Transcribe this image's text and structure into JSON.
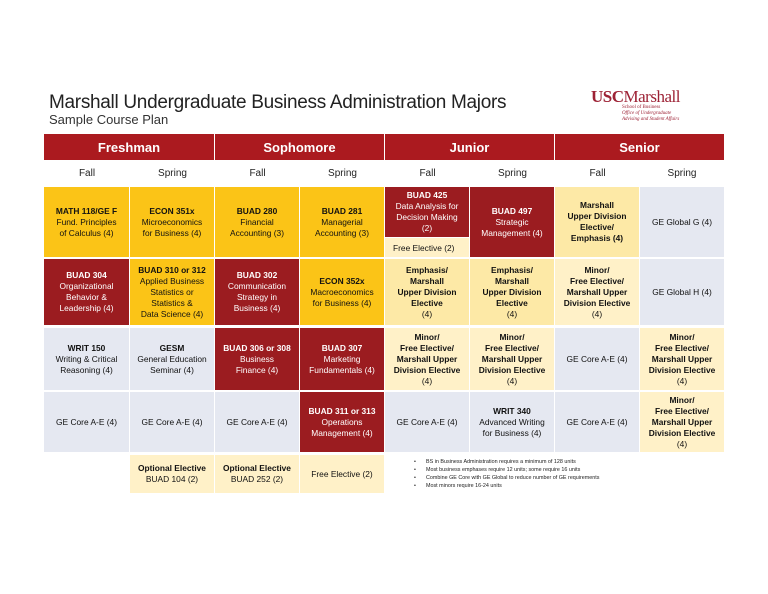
{
  "header": {
    "title": "Marshall Undergraduate Business Administration Majors",
    "subtitle": "Sample Course Plan"
  },
  "logo": {
    "usc": "USC",
    "marshall": "Marshall",
    "line1": "School of Business",
    "line2": "Office of Undergraduate",
    "line3": "Advising and Student Affairs"
  },
  "years": [
    "Freshman",
    "Sophomore",
    "Junior",
    "Senior"
  ],
  "terms": [
    "Fall",
    "Spring",
    "Fall",
    "Spring",
    "Fall",
    "Spring",
    "Fall",
    "Spring"
  ],
  "row1": {
    "c1": {
      "bold": "MATH 118/GE F",
      "text": [
        "Fund. Principles",
        "of Calculus (4)"
      ]
    },
    "c2": {
      "bold": "ECON 351x",
      "text": [
        "Microeconomics",
        "for Business (4)"
      ]
    },
    "c3": {
      "bold": "BUAD 280",
      "text": [
        "Financial",
        "Accounting  (3)"
      ]
    },
    "c4": {
      "bold": "BUAD 281",
      "text": [
        "Managerial",
        "Accounting (3)"
      ]
    },
    "c5": {
      "bold": "BUAD 425",
      "text": [
        "Data Analysis for",
        "Decision Making",
        "(2)"
      ]
    },
    "c5_free": "Free Elective (2)",
    "c6": {
      "bold": "BUAD 497",
      "text": [
        "Strategic",
        "Management (4)"
      ]
    },
    "c7": {
      "bold": [
        "Marshall",
        "Upper Division",
        "Elective/",
        "Emphasis (4)"
      ]
    },
    "c8": {
      "text": "GE Global G (4)"
    }
  },
  "row2": {
    "c1": {
      "bold": "BUAD 304",
      "text": [
        "Organizational",
        "Behavior &",
        "Leadership (4)"
      ]
    },
    "c2": {
      "bold": "BUAD 310 or 312",
      "text": [
        "Applied Business",
        "Statistics or",
        "Statistics &",
        "Data Science (4)"
      ]
    },
    "c3": {
      "bold": "BUAD 302",
      "text": [
        "Communication",
        "Strategy in",
        "Business (4)"
      ]
    },
    "c4": {
      "bold": "ECON 352x",
      "text": [
        "Macroeconomics",
        "for Business (4)"
      ]
    },
    "c5": {
      "bold": [
        "Emphasis/",
        "Marshall",
        "Upper Division",
        "Elective"
      ],
      "text": [
        "(4)"
      ]
    },
    "c6": {
      "bold": [
        "Emphasis/",
        "Marshall",
        "Upper Division",
        "Elective"
      ],
      "text": [
        "(4)"
      ]
    },
    "c7": {
      "bold": [
        "Minor/",
        "Free Elective/",
        "Marshall Upper",
        "Division Elective"
      ],
      "text": [
        "(4)"
      ]
    },
    "c8": {
      "text": "GE Global H (4)"
    }
  },
  "row3": {
    "c1": {
      "bold": "WRIT 150",
      "text": [
        "Writing & Critical",
        "Reasoning (4)"
      ]
    },
    "c2": {
      "bold": "GESM",
      "text": [
        "General Education",
        "Seminar (4)"
      ]
    },
    "c3": {
      "bold": "BUAD 306 or 308",
      "text": [
        "Business",
        "Finance (4)"
      ]
    },
    "c4": {
      "bold": "BUAD 307",
      "text": [
        "Marketing",
        "Fundamentals (4)"
      ]
    },
    "c5": {
      "bold": [
        "Minor/",
        "Free Elective/",
        "Marshall Upper",
        "Division Elective"
      ],
      "text": [
        "(4)"
      ]
    },
    "c6": {
      "bold": [
        "Minor/",
        "Free Elective/",
        "Marshall Upper",
        "Division Elective"
      ],
      "text": [
        "(4)"
      ]
    },
    "c7": {
      "text": "GE Core A-E (4)"
    },
    "c8": {
      "bold": [
        "Minor/",
        "Free Elective/",
        "Marshall Upper",
        "Division Elective"
      ],
      "text": [
        "(4)"
      ]
    }
  },
  "row4": {
    "c1": {
      "text": "GE Core A-E (4)"
    },
    "c2": {
      "text": "GE Core A-E (4)"
    },
    "c3": {
      "text": "GE Core A-E (4)"
    },
    "c4": {
      "bold": "BUAD 311 or 313",
      "text": [
        "Operations",
        "Management (4)"
      ]
    },
    "c5": {
      "text": "GE Core A-E (4)"
    },
    "c6": {
      "bold": "WRIT 340",
      "text": [
        "Advanced Writing",
        "for Business (4)"
      ]
    },
    "c7": {
      "text": "GE Core A-E (4)"
    },
    "c8": {
      "bold": [
        "Minor/",
        "Free Elective/",
        "Marshall Upper",
        "Division Elective"
      ],
      "text": [
        "(4)"
      ]
    }
  },
  "row5": {
    "c2": {
      "bold": "Optional Elective",
      "text": [
        "BUAD 104 (2)"
      ]
    },
    "c3": {
      "bold": "Optional Elective",
      "text": [
        "BUAD 252 (2)"
      ]
    },
    "c4": {
      "text": "Free Elective (2)"
    }
  },
  "notes": [
    "BS in Business Administration requires a minimum of 128 units",
    "Most business emphases require 12 units; some require 16 units",
    "Combine GE Core with GE Global to reduce number of GE requirements",
    "Most minors require 16-24 units"
  ]
}
